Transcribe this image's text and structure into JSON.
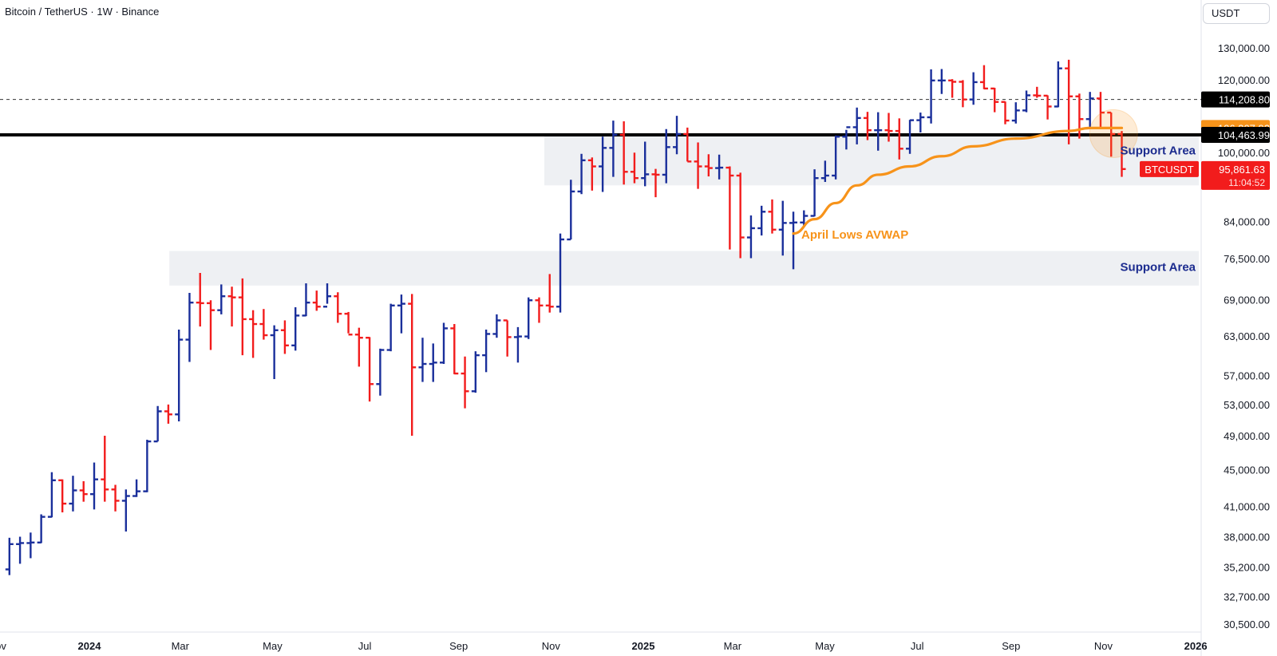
{
  "header": {
    "symbol_line": "Bitcoin / TetherUS · 1W · Binance"
  },
  "currency_button": "USDT",
  "colors": {
    "up_bar": "#1a2f9b",
    "down_bar": "#f21c1c",
    "avwap": "#f7931a",
    "support_fill": "#eef0f3",
    "support_text": "#1c2c8f",
    "level_line": "#000000",
    "last_price_badge": "#f21c1c"
  },
  "price_axis": {
    "ticks": [
      "130,000.00",
      "120,000.00",
      "100,000.00",
      "84,000.00",
      "76,500.00",
      "69,000.00",
      "63,000.00",
      "57,000.00",
      "53,000.00",
      "49,000.00",
      "45,000.00",
      "41,000.00",
      "38,000.00",
      "35,200.00",
      "32,700.00",
      "30,500.00"
    ]
  },
  "time_axis": {
    "labels": [
      "Nov",
      "2024",
      "Mar",
      "May",
      "Jul",
      "Sep",
      "Nov",
      "2025",
      "Mar",
      "May",
      "Jul",
      "Sep",
      "Nov",
      "2026"
    ]
  },
  "price_badges": {
    "dashed_level": "114,208.80",
    "avwap_value": "106,307.92",
    "support_line": "104,463.99",
    "last_price": "95,861.63",
    "symbol": "BTCUSDT",
    "countdown": "11:04:52"
  },
  "annotations": {
    "support_upper": "Support Area",
    "support_lower": "Support Area",
    "avwap_label": "April Lows AVWAP"
  },
  "chart_data": {
    "type": "ohlc-bar",
    "symbol": "Bitcoin / TetherUS",
    "interval": "1W",
    "exchange": "Binance",
    "y_scale": "log",
    "ylim": [
      29500,
      136000
    ],
    "x_range": [
      "2023-11-06",
      "2026-01-05"
    ],
    "horizontal_levels": [
      {
        "value": 114208.8,
        "style": "dashed"
      },
      {
        "value": 104463.99,
        "style": "solid"
      }
    ],
    "zones": [
      {
        "label": "Support Area",
        "low": 92000,
        "high": 104463.99
      },
      {
        "label": "Support Area",
        "low": 71500,
        "high": 78000
      }
    ],
    "avwap": {
      "label": "April Lows AVWAP",
      "points": [
        {
          "x": "2025-04-07",
          "y": 81500
        },
        {
          "x": "2025-04-21",
          "y": 84500
        },
        {
          "x": "2025-05-05",
          "y": 88000
        },
        {
          "x": "2025-05-19",
          "y": 92000
        },
        {
          "x": "2025-06-02",
          "y": 94500
        },
        {
          "x": "2025-06-23",
          "y": 96500
        },
        {
          "x": "2025-07-14",
          "y": 99000
        },
        {
          "x": "2025-08-04",
          "y": 101500
        },
        {
          "x": "2025-09-01",
          "y": 103500
        },
        {
          "x": "2025-10-06",
          "y": 105500
        },
        {
          "x": "2025-10-20",
          "y": 106300
        },
        {
          "x": "2025-11-10",
          "y": 106307.92
        }
      ]
    },
    "last_price": 95861.63,
    "bars": [
      {
        "t": "2023-11-06",
        "o": 35000,
        "h": 37900,
        "l": 34500,
        "c": 37300
      },
      {
        "t": "2023-11-13",
        "o": 37300,
        "h": 38000,
        "l": 35500,
        "c": 37400
      },
      {
        "t": "2023-11-20",
        "o": 37400,
        "h": 38400,
        "l": 36000,
        "c": 37450
      },
      {
        "t": "2023-11-27",
        "o": 37450,
        "h": 40200,
        "l": 37400,
        "c": 39950
      },
      {
        "t": "2023-12-04",
        "o": 39950,
        "h": 44700,
        "l": 39900,
        "c": 43800
      },
      {
        "t": "2023-12-11",
        "o": 43800,
        "h": 43900,
        "l": 40400,
        "c": 41300
      },
      {
        "t": "2023-12-18",
        "o": 41300,
        "h": 44300,
        "l": 40500,
        "c": 42700
      },
      {
        "t": "2023-12-25",
        "o": 42700,
        "h": 43700,
        "l": 41500,
        "c": 42300
      },
      {
        "t": "2024-01-01",
        "o": 42300,
        "h": 45800,
        "l": 40700,
        "c": 43900
      },
      {
        "t": "2024-01-08",
        "o": 43900,
        "h": 49000,
        "l": 41500,
        "c": 42800
      },
      {
        "t": "2024-01-15",
        "o": 42800,
        "h": 43300,
        "l": 40500,
        "c": 41600
      },
      {
        "t": "2024-01-22",
        "o": 41600,
        "h": 42800,
        "l": 38500,
        "c": 42100
      },
      {
        "t": "2024-01-29",
        "o": 42100,
        "h": 43900,
        "l": 42000,
        "c": 42600
      },
      {
        "t": "2024-02-05",
        "o": 42600,
        "h": 48500,
        "l": 42500,
        "c": 48300
      },
      {
        "t": "2024-02-12",
        "o": 48300,
        "h": 52800,
        "l": 48300,
        "c": 52100
      },
      {
        "t": "2024-02-19",
        "o": 52100,
        "h": 53000,
        "l": 50500,
        "c": 51700
      },
      {
        "t": "2024-02-26",
        "o": 51700,
        "h": 64000,
        "l": 50800,
        "c": 62400
      },
      {
        "t": "2024-03-04",
        "o": 62400,
        "h": 70200,
        "l": 59000,
        "c": 68500
      },
      {
        "t": "2024-03-11",
        "o": 68500,
        "h": 73800,
        "l": 64500,
        "c": 68400
      },
      {
        "t": "2024-03-18",
        "o": 68400,
        "h": 68900,
        "l": 60800,
        "c": 67200
      },
      {
        "t": "2024-03-25",
        "o": 67200,
        "h": 71700,
        "l": 66500,
        "c": 69600
      },
      {
        "t": "2024-04-01",
        "o": 69600,
        "h": 71300,
        "l": 64500,
        "c": 69400
      },
      {
        "t": "2024-04-08",
        "o": 69400,
        "h": 72800,
        "l": 60000,
        "c": 65700
      },
      {
        "t": "2024-04-15",
        "o": 65700,
        "h": 67200,
        "l": 59600,
        "c": 64900
      },
      {
        "t": "2024-04-22",
        "o": 64900,
        "h": 67400,
        "l": 62400,
        "c": 63100
      },
      {
        "t": "2024-04-29",
        "o": 63100,
        "h": 64700,
        "l": 56500,
        "c": 63900
      },
      {
        "t": "2024-05-06",
        "o": 63900,
        "h": 65500,
        "l": 60200,
        "c": 61500
      },
      {
        "t": "2024-05-13",
        "o": 61500,
        "h": 67700,
        "l": 60700,
        "c": 66300
      },
      {
        "t": "2024-05-20",
        "o": 66300,
        "h": 71900,
        "l": 66200,
        "c": 68500
      },
      {
        "t": "2024-05-27",
        "o": 68500,
        "h": 70600,
        "l": 67100,
        "c": 67800
      },
      {
        "t": "2024-06-03",
        "o": 67800,
        "h": 71900,
        "l": 68300,
        "c": 69600
      },
      {
        "t": "2024-06-10",
        "o": 69600,
        "h": 70300,
        "l": 65100,
        "c": 66600
      },
      {
        "t": "2024-06-17",
        "o": 66600,
        "h": 66900,
        "l": 63400,
        "c": 63200
      },
      {
        "t": "2024-06-24",
        "o": 63200,
        "h": 64300,
        "l": 58300,
        "c": 62700
      },
      {
        "t": "2024-07-01",
        "o": 62700,
        "h": 62800,
        "l": 53400,
        "c": 55800
      },
      {
        "t": "2024-07-08",
        "o": 55800,
        "h": 61000,
        "l": 54200,
        "c": 60800
      },
      {
        "t": "2024-07-15",
        "o": 60800,
        "h": 68300,
        "l": 60600,
        "c": 68000
      },
      {
        "t": "2024-07-22",
        "o": 68000,
        "h": 69900,
        "l": 63400,
        "c": 68300
      },
      {
        "t": "2024-07-29",
        "o": 68300,
        "h": 70000,
        "l": 49000,
        "c": 58200
      },
      {
        "t": "2024-08-05",
        "o": 58200,
        "h": 62700,
        "l": 56100,
        "c": 58700
      },
      {
        "t": "2024-08-12",
        "o": 58700,
        "h": 61800,
        "l": 56100,
        "c": 58900
      },
      {
        "t": "2024-08-19",
        "o": 58900,
        "h": 65100,
        "l": 58700,
        "c": 64200
      },
      {
        "t": "2024-08-26",
        "o": 64200,
        "h": 64900,
        "l": 57200,
        "c": 57300
      },
      {
        "t": "2024-09-02",
        "o": 57300,
        "h": 59800,
        "l": 52500,
        "c": 54800
      },
      {
        "t": "2024-09-09",
        "o": 54800,
        "h": 60600,
        "l": 54600,
        "c": 60000
      },
      {
        "t": "2024-09-16",
        "o": 60000,
        "h": 64000,
        "l": 57500,
        "c": 63300
      },
      {
        "t": "2024-09-23",
        "o": 63300,
        "h": 66500,
        "l": 62700,
        "c": 65500
      },
      {
        "t": "2024-09-30",
        "o": 65500,
        "h": 65500,
        "l": 59800,
        "c": 62800
      },
      {
        "t": "2024-10-07",
        "o": 62800,
        "h": 64400,
        "l": 58900,
        "c": 62900
      },
      {
        "t": "2024-10-14",
        "o": 62900,
        "h": 69400,
        "l": 62500,
        "c": 68900
      },
      {
        "t": "2024-10-21",
        "o": 68900,
        "h": 69400,
        "l": 65100,
        "c": 68000
      },
      {
        "t": "2024-10-28",
        "o": 68000,
        "h": 73600,
        "l": 66800,
        "c": 67800
      },
      {
        "t": "2024-11-04",
        "o": 67800,
        "h": 81500,
        "l": 66800,
        "c": 80300
      },
      {
        "t": "2024-11-11",
        "o": 80300,
        "h": 93300,
        "l": 80300,
        "c": 90600
      },
      {
        "t": "2024-11-18",
        "o": 90600,
        "h": 99600,
        "l": 90000,
        "c": 98000
      },
      {
        "t": "2024-11-25",
        "o": 98000,
        "h": 98700,
        "l": 90800,
        "c": 96500
      },
      {
        "t": "2024-12-02",
        "o": 96500,
        "h": 104000,
        "l": 90500,
        "c": 101100
      },
      {
        "t": "2024-12-09",
        "o": 101100,
        "h": 108300,
        "l": 94000,
        "c": 104500
      },
      {
        "t": "2024-12-16",
        "o": 104500,
        "h": 108100,
        "l": 92200,
        "c": 95200
      },
      {
        "t": "2024-12-23",
        "o": 95200,
        "h": 99900,
        "l": 92500,
        "c": 93700
      },
      {
        "t": "2024-12-30",
        "o": 93700,
        "h": 102700,
        "l": 91800,
        "c": 94600
      },
      {
        "t": "2025-01-06",
        "o": 94600,
        "h": 95900,
        "l": 89300,
        "c": 94500
      },
      {
        "t": "2025-01-13",
        "o": 94500,
        "h": 106000,
        "l": 92500,
        "c": 101300
      },
      {
        "t": "2025-01-20",
        "o": 101300,
        "h": 109600,
        "l": 99500,
        "c": 104700
      },
      {
        "t": "2025-01-27",
        "o": 104700,
        "h": 106400,
        "l": 97700,
        "c": 97700
      },
      {
        "t": "2025-02-03",
        "o": 97700,
        "h": 102500,
        "l": 91200,
        "c": 96500
      },
      {
        "t": "2025-02-10",
        "o": 96500,
        "h": 99500,
        "l": 94100,
        "c": 96100
      },
      {
        "t": "2025-02-17",
        "o": 96100,
        "h": 99400,
        "l": 93400,
        "c": 96200
      },
      {
        "t": "2025-02-24",
        "o": 96200,
        "h": 96500,
        "l": 78300,
        "c": 94300
      },
      {
        "t": "2025-03-03",
        "o": 94300,
        "h": 95000,
        "l": 76600,
        "c": 80700
      },
      {
        "t": "2025-03-10",
        "o": 80700,
        "h": 85300,
        "l": 76600,
        "c": 82600
      },
      {
        "t": "2025-03-17",
        "o": 82600,
        "h": 87400,
        "l": 81100,
        "c": 86100
      },
      {
        "t": "2025-03-24",
        "o": 86100,
        "h": 88800,
        "l": 81500,
        "c": 82300
      },
      {
        "t": "2025-03-31",
        "o": 82300,
        "h": 88500,
        "l": 77100,
        "c": 83700
      },
      {
        "t": "2025-04-07",
        "o": 83700,
        "h": 86100,
        "l": 74500,
        "c": 83800
      },
      {
        "t": "2025-04-14",
        "o": 83800,
        "h": 86400,
        "l": 83100,
        "c": 85200
      },
      {
        "t": "2025-04-21",
        "o": 85200,
        "h": 95800,
        "l": 85100,
        "c": 93700
      },
      {
        "t": "2025-04-28",
        "o": 93700,
        "h": 97900,
        "l": 92800,
        "c": 94300
      },
      {
        "t": "2025-05-05",
        "o": 94300,
        "h": 104300,
        "l": 93400,
        "c": 104000
      },
      {
        "t": "2025-05-12",
        "o": 104000,
        "h": 105800,
        "l": 100700,
        "c": 106500
      },
      {
        "t": "2025-05-19",
        "o": 106500,
        "h": 111900,
        "l": 102000,
        "c": 109000
      },
      {
        "t": "2025-05-26",
        "o": 109000,
        "h": 110700,
        "l": 103100,
        "c": 105700
      },
      {
        "t": "2025-06-02",
        "o": 105700,
        "h": 110600,
        "l": 100400,
        "c": 105700
      },
      {
        "t": "2025-06-09",
        "o": 105700,
        "h": 110400,
        "l": 102700,
        "c": 105500
      },
      {
        "t": "2025-06-16",
        "o": 105500,
        "h": 108900,
        "l": 98200,
        "c": 100900
      },
      {
        "t": "2025-06-23",
        "o": 100900,
        "h": 108500,
        "l": 99600,
        "c": 108400
      },
      {
        "t": "2025-06-30",
        "o": 108400,
        "h": 110500,
        "l": 105100,
        "c": 109200
      },
      {
        "t": "2025-07-07",
        "o": 109200,
        "h": 123200,
        "l": 107500,
        "c": 119800
      },
      {
        "t": "2025-07-14",
        "o": 119800,
        "h": 123300,
        "l": 115800,
        "c": 119800
      },
      {
        "t": "2025-07-21",
        "o": 119800,
        "h": 120200,
        "l": 114700,
        "c": 119400
      },
      {
        "t": "2025-07-28",
        "o": 119400,
        "h": 119900,
        "l": 112000,
        "c": 114200
      },
      {
        "t": "2025-08-04",
        "o": 114200,
        "h": 122300,
        "l": 112700,
        "c": 119300
      },
      {
        "t": "2025-08-11",
        "o": 119300,
        "h": 124500,
        "l": 117200,
        "c": 117400
      },
      {
        "t": "2025-08-18",
        "o": 117400,
        "h": 117600,
        "l": 110600,
        "c": 113500
      },
      {
        "t": "2025-08-25",
        "o": 113500,
        "h": 113600,
        "l": 107300,
        "c": 108300
      },
      {
        "t": "2025-09-01",
        "o": 108300,
        "h": 113400,
        "l": 107500,
        "c": 111100
      },
      {
        "t": "2025-09-08",
        "o": 111100,
        "h": 116800,
        "l": 110600,
        "c": 115400
      },
      {
        "t": "2025-09-15",
        "o": 115400,
        "h": 117900,
        "l": 114700,
        "c": 115300
      },
      {
        "t": "2025-09-22",
        "o": 115300,
        "h": 115400,
        "l": 108600,
        "c": 112200
      },
      {
        "t": "2025-09-29",
        "o": 112200,
        "h": 125700,
        "l": 112000,
        "c": 123500
      },
      {
        "t": "2025-10-06",
        "o": 123500,
        "h": 126200,
        "l": 102000,
        "c": 115100
      },
      {
        "t": "2025-10-13",
        "o": 115100,
        "h": 115900,
        "l": 103500,
        "c": 108700
      },
      {
        "t": "2025-10-20",
        "o": 108700,
        "h": 116400,
        "l": 106600,
        "c": 114500
      },
      {
        "t": "2025-10-27",
        "o": 114500,
        "h": 116400,
        "l": 106300,
        "c": 110500
      },
      {
        "t": "2025-11-03",
        "o": 110500,
        "h": 110500,
        "l": 98900,
        "c": 104700
      },
      {
        "t": "2025-11-10",
        "o": 104700,
        "h": 105500,
        "l": 94000,
        "c": 95861.63
      }
    ]
  }
}
